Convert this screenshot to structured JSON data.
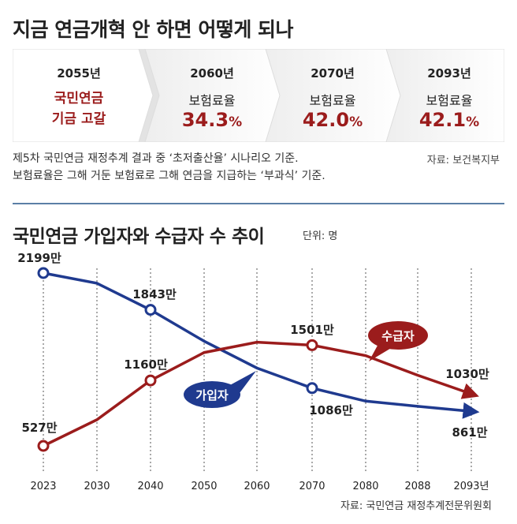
{
  "title": "지금 연금개혁 안 하면 어떻게 되나",
  "strip": {
    "cells": [
      {
        "year": "2055년",
        "line1": "국민연금",
        "line2": "기금 고갈"
      },
      {
        "year": "2060년",
        "label": "보험료율",
        "rate": "34.3",
        "unit": "%"
      },
      {
        "year": "2070년",
        "label": "보험료율",
        "rate": "42.0",
        "unit": "%"
      },
      {
        "year": "2093년",
        "label": "보험료율",
        "rate": "42.1",
        "unit": "%"
      }
    ]
  },
  "note_line1": "제5차 국민연금 재정추계 결과 중 ‘초저출산율’ 시나리오 기준.",
  "note_line2": "보험료율은 그해 거둔 보험료로 그해 연금을 지급하는 ‘부과식’ 기준.",
  "source1": "자료: 보건복지부",
  "chart_title": "국민연금 가입자와 수급자 수 추이",
  "unit_label": "단위: 명",
  "source2": "자료: 국민연금 재정추계전문위원회",
  "colors": {
    "subscribers": "#1f3a8f",
    "recipients": "#9b1c1c",
    "accent": "#9b1c1c",
    "divider": "#5b7fa6"
  },
  "chart_data": {
    "type": "line",
    "categories": [
      "2023",
      "2030",
      "2040",
      "2050",
      "2060",
      "2070",
      "2080",
      "2088",
      "2093년"
    ],
    "series": [
      {
        "name": "가입자",
        "values": [
          2199,
          2100,
          1843,
          1540,
          1280,
          1086,
          960,
          910,
          861
        ]
      },
      {
        "name": "수급자",
        "values": [
          527,
          780,
          1160,
          1430,
          1530,
          1501,
          1400,
          1210,
          1030
        ]
      }
    ],
    "data_labels": [
      {
        "series": "가입자",
        "category": "2023",
        "text": "2199만"
      },
      {
        "series": "가입자",
        "category": "2040",
        "text": "1843만"
      },
      {
        "series": "가입자",
        "category": "2070",
        "text": "1086만"
      },
      {
        "series": "가입자",
        "category": "2093년",
        "text": "861만"
      },
      {
        "series": "수급자",
        "category": "2023",
        "text": "527만"
      },
      {
        "series": "수급자",
        "category": "2040",
        "text": "1160만"
      },
      {
        "series": "수급자",
        "category": "2070",
        "text": "1501만"
      },
      {
        "series": "수급자",
        "category": "2093년",
        "text": "1030만"
      }
    ],
    "xlabel": "",
    "ylabel": "",
    "ylim": [
      300,
      2400
    ],
    "grid": "vertical-dashed"
  }
}
